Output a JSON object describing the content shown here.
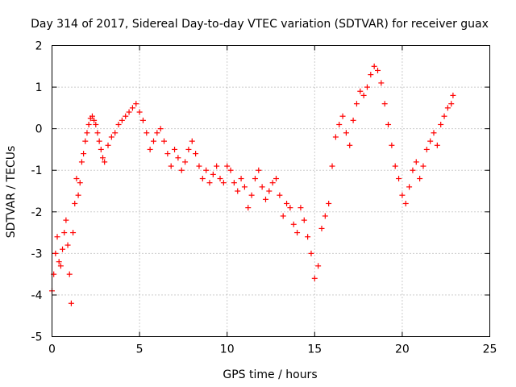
{
  "chart_data": {
    "type": "scatter",
    "title": "Day 314 of 2017, Sidereal Day-to-day VTEC variation (SDTVAR) for receiver guax",
    "xlabel": "GPS time / hours",
    "ylabel": "SDTVAR / TECUs",
    "xlim": [
      0,
      25
    ],
    "ylim": [
      -5,
      2
    ],
    "xticks": [
      0,
      5,
      10,
      15,
      20,
      25
    ],
    "yticks": [
      -5,
      -4,
      -3,
      -2,
      -1,
      0,
      1,
      2
    ],
    "xtick_labels": [
      "0",
      "5",
      "10",
      "15",
      "20",
      "25"
    ],
    "ytick_labels": [
      "-5",
      "-4",
      "-3",
      "-2",
      "-1",
      "0",
      "1",
      "2"
    ],
    "grid": true,
    "marker": "+",
    "series": [
      {
        "name": "SDTVAR",
        "color": "#ff0000",
        "x": [
          0.0,
          0.1,
          0.2,
          0.3,
          0.4,
          0.5,
          0.6,
          0.7,
          0.8,
          0.9,
          1.0,
          1.1,
          1.2,
          1.3,
          1.4,
          1.5,
          1.6,
          1.7,
          1.8,
          1.9,
          2.0,
          2.1,
          2.2,
          2.3,
          2.4,
          2.5,
          2.6,
          2.7,
          2.8,
          2.9,
          3.0,
          3.2,
          3.4,
          3.6,
          3.8,
          4.0,
          4.2,
          4.4,
          4.6,
          4.8,
          5.0,
          5.2,
          5.4,
          5.6,
          5.8,
          6.0,
          6.2,
          6.4,
          6.6,
          6.8,
          7.0,
          7.2,
          7.4,
          7.6,
          7.8,
          8.0,
          8.2,
          8.4,
          8.6,
          8.8,
          9.0,
          9.2,
          9.4,
          9.6,
          9.8,
          10.0,
          10.2,
          10.4,
          10.6,
          10.8,
          11.0,
          11.2,
          11.4,
          11.6,
          11.8,
          12.0,
          12.2,
          12.4,
          12.6,
          12.8,
          13.0,
          13.2,
          13.4,
          13.6,
          13.8,
          14.0,
          14.2,
          14.4,
          14.6,
          14.8,
          15.0,
          15.2,
          15.4,
          15.6,
          15.8,
          16.0,
          16.2,
          16.4,
          16.6,
          16.8,
          17.0,
          17.2,
          17.4,
          17.6,
          17.8,
          18.0,
          18.2,
          18.4,
          18.6,
          18.8,
          19.0,
          19.2,
          19.4,
          19.6,
          19.8,
          20.0,
          20.2,
          20.4,
          20.6,
          20.8,
          21.0,
          21.2,
          21.4,
          21.6,
          21.8,
          22.0,
          22.2,
          22.4,
          22.6,
          22.8,
          22.9
        ],
        "y": [
          -3.9,
          -3.5,
          -3.0,
          -2.6,
          -3.2,
          -3.3,
          -2.9,
          -2.5,
          -2.2,
          -2.8,
          -3.5,
          -4.2,
          -2.5,
          -1.8,
          -1.2,
          -1.6,
          -1.3,
          -0.8,
          -0.6,
          -0.3,
          -0.1,
          0.1,
          0.25,
          0.3,
          0.2,
          0.1,
          -0.1,
          -0.3,
          -0.5,
          -0.7,
          -0.8,
          -0.4,
          -0.2,
          -0.1,
          0.1,
          0.2,
          0.3,
          0.4,
          0.5,
          0.6,
          0.4,
          0.2,
          -0.1,
          -0.5,
          -0.3,
          -0.1,
          0.0,
          -0.3,
          -0.6,
          -0.9,
          -0.5,
          -0.7,
          -1.0,
          -0.8,
          -0.5,
          -0.3,
          -0.6,
          -0.9,
          -1.2,
          -1.0,
          -1.3,
          -1.1,
          -0.9,
          -1.2,
          -1.3,
          -0.9,
          -1.0,
          -1.3,
          -1.5,
          -1.2,
          -1.4,
          -1.9,
          -1.6,
          -1.2,
          -1.0,
          -1.4,
          -1.7,
          -1.5,
          -1.3,
          -1.2,
          -1.6,
          -2.1,
          -1.8,
          -1.9,
          -2.3,
          -2.5,
          -1.9,
          -2.2,
          -2.6,
          -3.0,
          -3.6,
          -3.3,
          -2.4,
          -2.1,
          -1.8,
          -0.9,
          -0.2,
          0.1,
          0.3,
          -0.1,
          -0.4,
          0.2,
          0.6,
          0.9,
          0.8,
          1.0,
          1.3,
          1.5,
          1.4,
          1.1,
          0.6,
          0.1,
          -0.4,
          -0.9,
          -1.2,
          -1.6,
          -1.8,
          -1.4,
          -1.0,
          -0.8,
          -1.2,
          -0.9,
          -0.5,
          -0.3,
          -0.1,
          -0.4,
          0.1,
          0.3,
          0.5,
          0.6,
          0.8
        ]
      }
    ]
  }
}
